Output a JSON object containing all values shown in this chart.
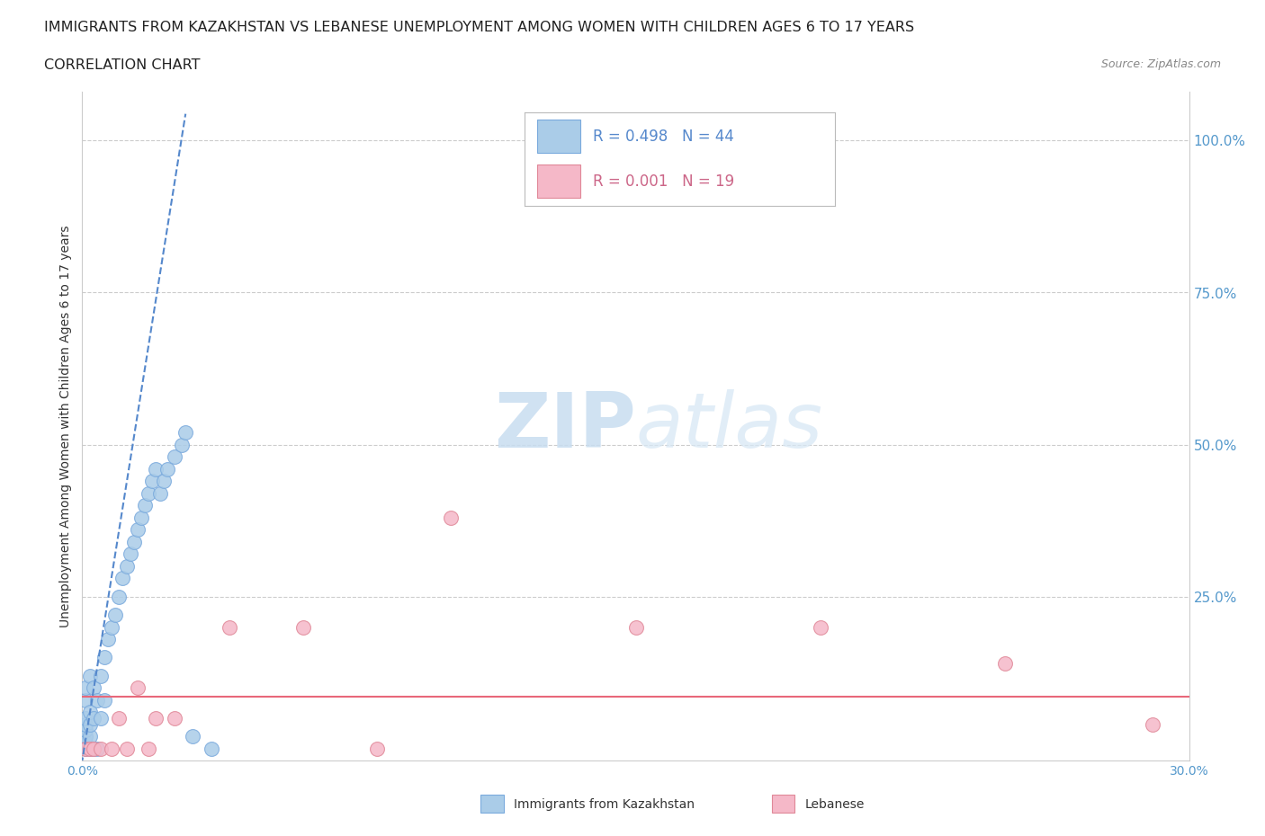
{
  "title1": "IMMIGRANTS FROM KAZAKHSTAN VS LEBANESE UNEMPLOYMENT AMONG WOMEN WITH CHILDREN AGES 6 TO 17 YEARS",
  "title2": "CORRELATION CHART",
  "source": "Source: ZipAtlas.com",
  "ylabel": "Unemployment Among Women with Children Ages 6 to 17 years",
  "xlim": [
    0.0,
    0.3
  ],
  "ylim": [
    -0.02,
    1.08
  ],
  "ytick_vals": [
    0.25,
    0.5,
    0.75,
    1.0
  ],
  "ytick_labels": [
    "25.0%",
    "50.0%",
    "75.0%",
    "100.0%"
  ],
  "xtick_vals": [
    0.0,
    0.05,
    0.1,
    0.15,
    0.2,
    0.25,
    0.3
  ],
  "xtick_labels": [
    "0.0%",
    "",
    "",
    "",
    "",
    "",
    "30.0%"
  ],
  "R_kaz": 0.498,
  "N_kaz": 44,
  "R_leb": 0.001,
  "N_leb": 19,
  "blue_color": "#aacce8",
  "blue_edge": "#7aaadd",
  "pink_color": "#f5b8c8",
  "pink_edge": "#e08898",
  "trend_blue_color": "#5588cc",
  "trend_pink_color": "#e8687a",
  "watermark": "ZIPatlas",
  "background_color": "#ffffff",
  "grid_color": "#cccccc",
  "title_fontsize": 11.5,
  "marker_size": 130,
  "kaz_x": [
    0.001,
    0.001,
    0.001,
    0.001,
    0.001,
    0.001,
    0.001,
    0.001,
    0.002,
    0.002,
    0.002,
    0.002,
    0.002,
    0.003,
    0.003,
    0.003,
    0.004,
    0.004,
    0.005,
    0.005,
    0.006,
    0.006,
    0.007,
    0.008,
    0.009,
    0.01,
    0.011,
    0.012,
    0.013,
    0.014,
    0.015,
    0.016,
    0.017,
    0.018,
    0.019,
    0.02,
    0.021,
    0.022,
    0.023,
    0.025,
    0.027,
    0.028,
    0.03,
    0.035
  ],
  "kaz_y": [
    0.0,
    0.01,
    0.02,
    0.03,
    0.04,
    0.05,
    0.08,
    0.1,
    0.0,
    0.02,
    0.04,
    0.06,
    0.12,
    0.0,
    0.05,
    0.1,
    0.0,
    0.08,
    0.05,
    0.12,
    0.08,
    0.15,
    0.18,
    0.2,
    0.22,
    0.25,
    0.28,
    0.3,
    0.32,
    0.34,
    0.36,
    0.38,
    0.4,
    0.42,
    0.44,
    0.46,
    0.42,
    0.44,
    0.46,
    0.48,
    0.5,
    0.52,
    0.02,
    0.0
  ],
  "leb_x": [
    0.001,
    0.002,
    0.003,
    0.005,
    0.008,
    0.01,
    0.012,
    0.015,
    0.018,
    0.02,
    0.025,
    0.04,
    0.06,
    0.08,
    0.1,
    0.15,
    0.2,
    0.25,
    0.29
  ],
  "leb_y": [
    0.0,
    0.0,
    0.0,
    0.0,
    0.0,
    0.05,
    0.0,
    0.1,
    0.0,
    0.05,
    0.05,
    0.2,
    0.2,
    0.0,
    0.38,
    0.2,
    0.2,
    0.14,
    0.04
  ]
}
